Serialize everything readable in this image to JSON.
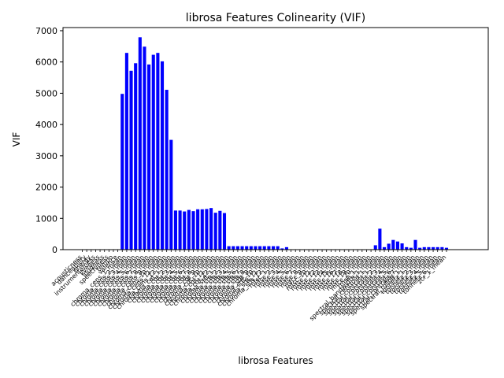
{
  "chart_data": {
    "type": "bar",
    "title": "librosa Features Colinearity (VIF)",
    "xlabel": "librosa Features",
    "ylabel": "VIF",
    "ylim": [
      0,
      7100
    ],
    "yticks": [
      0,
      1000,
      2000,
      3000,
      4000,
      5000,
      6000,
      7000
    ],
    "grid": false,
    "bar_color": "#0000ff",
    "categories": [
      "acousticness",
      "danceability",
      "energy",
      "instrumentalness",
      "liveness",
      "loudness",
      "speechiness",
      "tempo",
      "valence",
      "chroma_cens_1_mean",
      "chroma_cens_2_mean",
      "chroma_cens_3_mean",
      "chroma_cens_4_mean",
      "chroma_cens_5_mean",
      "chroma_cens_6_mean",
      "chroma_cens_7_mean",
      "chroma_cens_8_mean",
      "chroma_cens_9_mean",
      "chroma_cens_10_mean",
      "chroma_cens_11_mean",
      "chroma_cens_12_mean",
      "chroma_cqt_1_mean",
      "chroma_cqt_2_mean",
      "chroma_cqt_3_mean",
      "chroma_cqt_4_mean",
      "chroma_cqt_5_mean",
      "chroma_cqt_6_mean",
      "chroma_cqt_7_mean",
      "chroma_cqt_8_mean",
      "chroma_cqt_9_mean",
      "chroma_cqt_10_mean",
      "chroma_cqt_11_mean",
      "chroma_cqt_12_mean",
      "chroma_stft_1_mean",
      "chroma_stft_2_mean",
      "chroma_stft_3_mean",
      "chroma_stft_4_mean",
      "chroma_stft_5_mean",
      "chroma_stft_6_mean",
      "chroma_stft_7_mean",
      "chroma_stft_8_mean",
      "chroma_stft_9_mean",
      "chroma_stft_10_mean",
      "chroma_stft_11_mean",
      "chroma_stft_12_mean",
      "mfcc_1_mean",
      "mfcc_2_mean",
      "mfcc_3_mean",
      "mfcc_4_mean",
      "mfcc_5_mean",
      "mfcc_6_mean",
      "mfcc_7_mean",
      "mfcc_8_mean",
      "mfcc_9_mean",
      "mfcc_10_mean",
      "mfcc_11_mean",
      "mfcc_12_mean",
      "mfcc_13_mean",
      "mfcc_14_mean",
      "mfcc_15_mean",
      "mfcc_16_mean",
      "mfcc_17_mean",
      "mfcc_18_mean",
      "mfcc_19_mean",
      "mfcc_20_mean",
      "rmse_1_mean",
      "spectral_bandwidth_1_mean",
      "spectral_centroid_1_mean",
      "spectral_contrast_1_mean",
      "spectral_contrast_2_mean",
      "spectral_contrast_3_mean",
      "spectral_contrast_4_mean",
      "spectral_contrast_5_mean",
      "spectral_contrast_6_mean",
      "spectral_contrast_7_mean",
      "spectral_rolloff_1_mean",
      "tonnetz_1_mean",
      "tonnetz_2_mean",
      "tonnetz_3_mean",
      "tonnetz_4_mean",
      "tonnetz_5_mean",
      "tonnetz_6_mean",
      "zcr_1_mean"
    ],
    "values": [
      0,
      0,
      0,
      0,
      0,
      0,
      0,
      0,
      0,
      4980,
      6290,
      5720,
      5960,
      6790,
      6490,
      5920,
      6230,
      6290,
      6020,
      5110,
      3510,
      1250,
      1250,
      1220,
      1270,
      1230,
      1290,
      1290,
      1300,
      1330,
      1180,
      1240,
      1170,
      110,
      110,
      110,
      110,
      110,
      110,
      110,
      110,
      110,
      110,
      110,
      110,
      40,
      80,
      10,
      10,
      10,
      10,
      10,
      10,
      10,
      10,
      10,
      10,
      10,
      10,
      10,
      10,
      10,
      10,
      10,
      10,
      10,
      140,
      670,
      80,
      190,
      310,
      260,
      200,
      80,
      60,
      310,
      60,
      80,
      80,
      80,
      80,
      80,
      60
    ]
  }
}
